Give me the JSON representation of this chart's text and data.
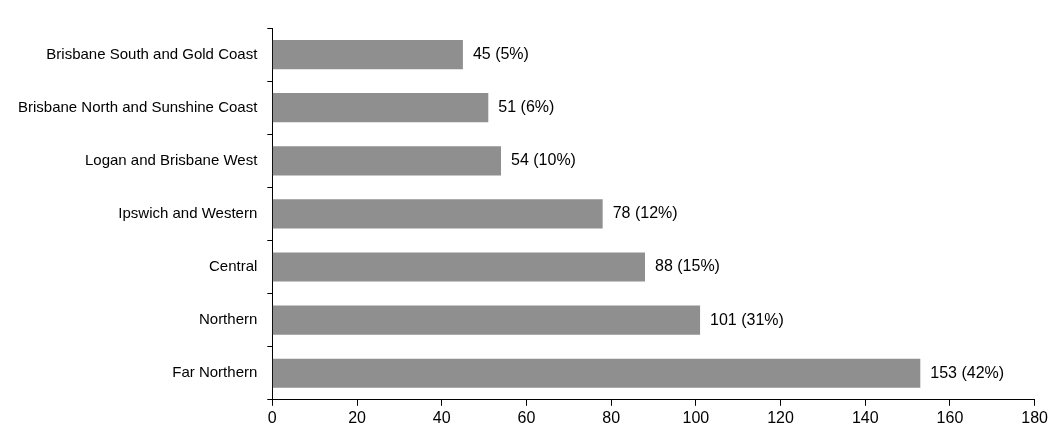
{
  "chart_data": {
    "type": "bar",
    "orientation": "horizontal",
    "categories": [
      "Brisbane South and Gold Coast",
      "Brisbane North and Sunshine Coast",
      "Logan and Brisbane West",
      "Ipswich and Western",
      "Central",
      "Northern",
      "Far Northern"
    ],
    "values": [
      45,
      51,
      54,
      78,
      88,
      101,
      153
    ],
    "value_labels": [
      "45 (5%)",
      "51 (6%)",
      "54 (10%)",
      "78 (12%)",
      "88 (15%)",
      "101 (31%)",
      "153 (42%)"
    ],
    "color": "#8f8f8f",
    "xlim": [
      0,
      180
    ],
    "xticks": [
      0,
      20,
      40,
      60,
      80,
      100,
      120,
      140,
      160,
      180
    ],
    "grid": false,
    "legend": false
  }
}
